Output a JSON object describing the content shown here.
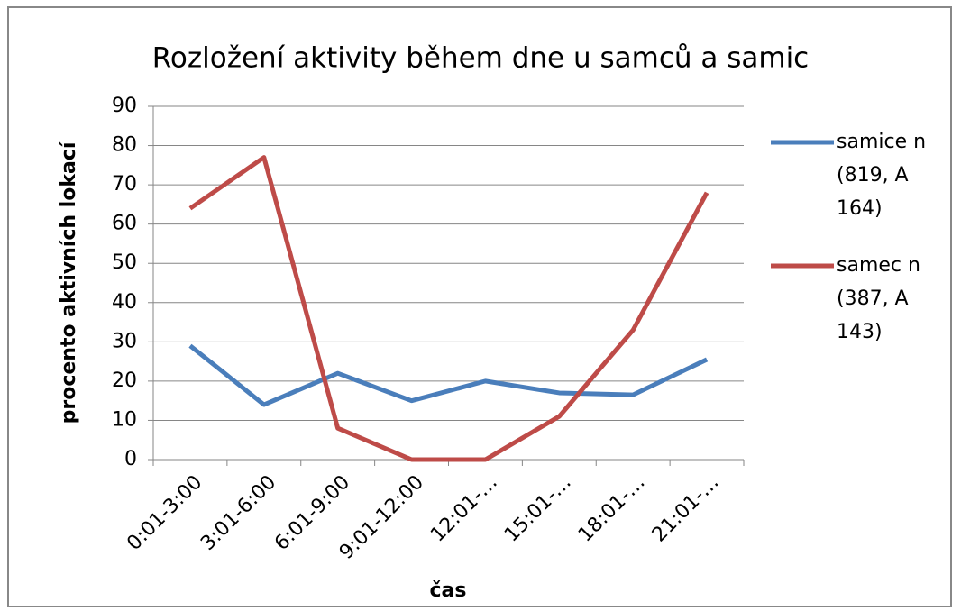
{
  "chart_data": {
    "type": "line",
    "title": "Rozložení aktivity během dne u samců a samic",
    "x_label": "čas",
    "y_label": "procento aktivních lokací",
    "categories": [
      "0:01-3:00",
      "3:01-6:00",
      "6:01-9:00",
      "9:01-12:00",
      "12:01-…",
      "15:01-…",
      "18:01-…",
      "21:01-…"
    ],
    "series": [
      {
        "name": "samice n (819, A 164)",
        "color": "#4a7ebb",
        "values": [
          29,
          14,
          22,
          15,
          20,
          17,
          16.5,
          25.5
        ]
      },
      {
        "name": "samec n (387, A 143)",
        "color": "#be4b48",
        "values": [
          64,
          77,
          8,
          0,
          0,
          11,
          33,
          68
        ]
      }
    ],
    "ylim": [
      0,
      90
    ],
    "yticks": [
      0,
      10,
      20,
      30,
      40,
      50,
      60,
      70,
      80,
      90
    ],
    "grid": true,
    "legend": "right"
  }
}
